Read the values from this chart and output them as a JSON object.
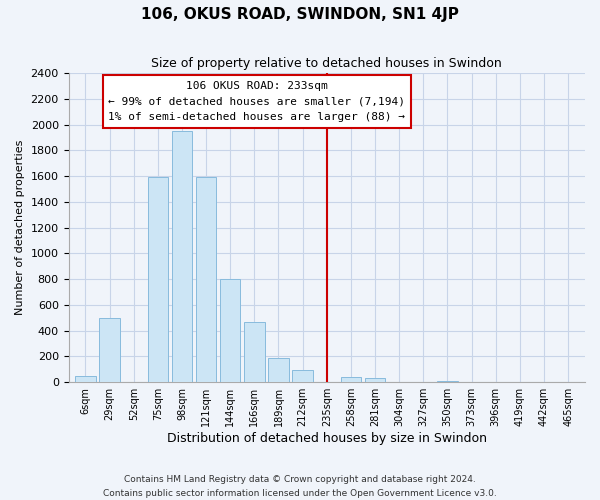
{
  "title": "106, OKUS ROAD, SWINDON, SN1 4JP",
  "subtitle": "Size of property relative to detached houses in Swindon",
  "xlabel": "Distribution of detached houses by size in Swindon",
  "ylabel": "Number of detached properties",
  "bar_labels": [
    "6sqm",
    "29sqm",
    "52sqm",
    "75sqm",
    "98sqm",
    "121sqm",
    "144sqm",
    "166sqm",
    "189sqm",
    "212sqm",
    "235sqm",
    "258sqm",
    "281sqm",
    "304sqm",
    "327sqm",
    "350sqm",
    "373sqm",
    "396sqm",
    "419sqm",
    "442sqm",
    "465sqm"
  ],
  "bar_values": [
    50,
    500,
    0,
    1590,
    1950,
    1590,
    800,
    470,
    190,
    95,
    0,
    40,
    30,
    0,
    0,
    10,
    0,
    0,
    0,
    0,
    0
  ],
  "bar_color": "#cce5f5",
  "bar_edge_color": "#88bbdd",
  "vline_x": 10,
  "vline_color": "#cc0000",
  "annotation_title": "106 OKUS ROAD: 233sqm",
  "annotation_line1": "← 99% of detached houses are smaller (7,194)",
  "annotation_line2": "1% of semi-detached houses are larger (88) →",
  "annotation_box_facecolor": "#ffffff",
  "annotation_box_edgecolor": "#cc0000",
  "ylim": [
    0,
    2400
  ],
  "yticks": [
    0,
    200,
    400,
    600,
    800,
    1000,
    1200,
    1400,
    1600,
    1800,
    2000,
    2200,
    2400
  ],
  "footnote1": "Contains HM Land Registry data © Crown copyright and database right 2024.",
  "footnote2": "Contains public sector information licensed under the Open Government Licence v3.0.",
  "bg_color": "#f0f4fa",
  "grid_color": "#c8d4e8"
}
